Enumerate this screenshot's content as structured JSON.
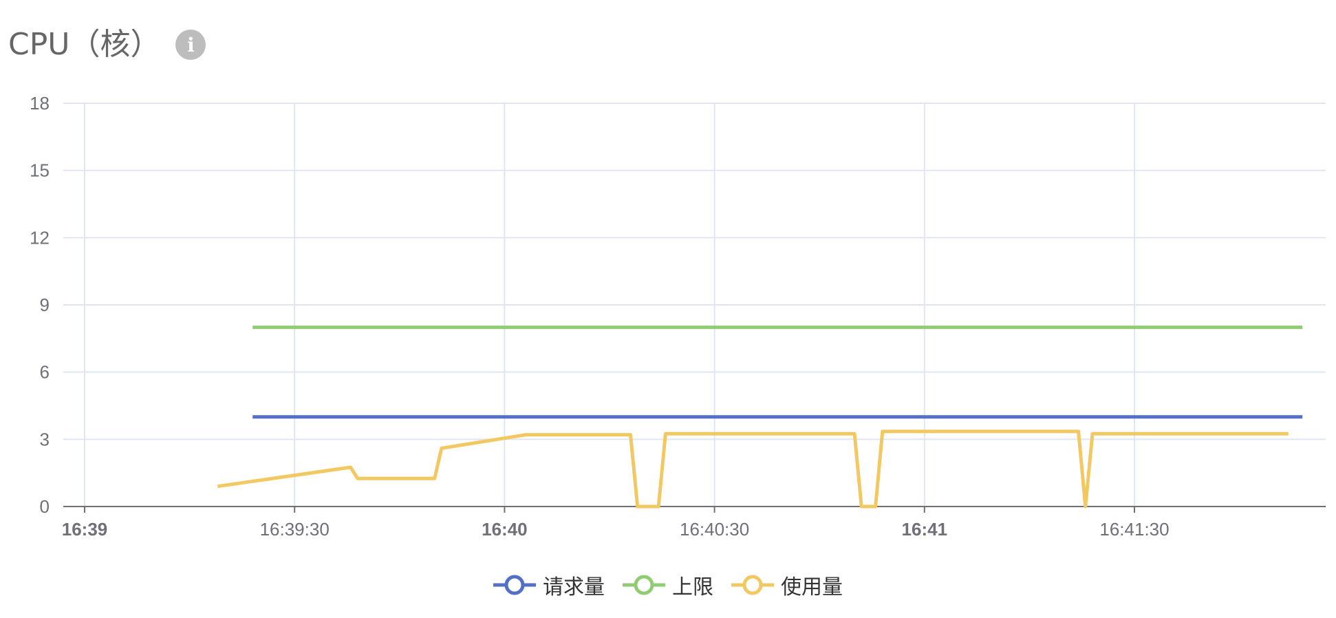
{
  "header": {
    "title": "CPU（核）",
    "info_icon": "info-icon"
  },
  "chart_data": {
    "type": "line",
    "ylim": [
      0,
      18
    ],
    "y_ticks": [
      0,
      3,
      6,
      9,
      12,
      15,
      18
    ],
    "x_range": [
      "16:39:00",
      "16:41:54"
    ],
    "x_ticks": [
      {
        "time": "16:39:00",
        "label": "16:39",
        "bold": true
      },
      {
        "time": "16:39:30",
        "label": "16:39:30",
        "bold": false
      },
      {
        "time": "16:40:00",
        "label": "16:40",
        "bold": true
      },
      {
        "time": "16:40:30",
        "label": "16:40:30",
        "bold": false
      },
      {
        "time": "16:41:00",
        "label": "16:41",
        "bold": true
      },
      {
        "time": "16:41:30",
        "label": "16:41:30",
        "bold": false
      }
    ],
    "grid": true,
    "legend_position": "bottom-center",
    "series": [
      {
        "name": "请求量",
        "color": "#5470c6",
        "points": [
          [
            "16:39:24",
            4
          ],
          [
            "16:41:54",
            4
          ]
        ]
      },
      {
        "name": "上限",
        "color": "#91cc75",
        "points": [
          [
            "16:39:24",
            8
          ],
          [
            "16:41:54",
            8
          ]
        ]
      },
      {
        "name": "使用量",
        "color": "#f2c862",
        "points": [
          [
            "16:39:19",
            0.9
          ],
          [
            "16:39:38",
            1.75
          ],
          [
            "16:39:39",
            1.25
          ],
          [
            "16:39:50",
            1.25
          ],
          [
            "16:39:51",
            2.6
          ],
          [
            "16:39:59",
            3.0
          ],
          [
            "16:40:03",
            3.2
          ],
          [
            "16:40:18",
            3.2
          ],
          [
            "16:40:19",
            0
          ],
          [
            "16:40:22",
            0
          ],
          [
            "16:40:23",
            3.25
          ],
          [
            "16:40:50",
            3.25
          ],
          [
            "16:40:51",
            0
          ],
          [
            "16:40:53",
            0
          ],
          [
            "16:40:54",
            3.35
          ],
          [
            "16:41:22",
            3.35
          ],
          [
            "16:41:23",
            0
          ],
          [
            "16:41:24",
            3.25
          ],
          [
            "16:41:52",
            3.25
          ]
        ]
      }
    ]
  }
}
